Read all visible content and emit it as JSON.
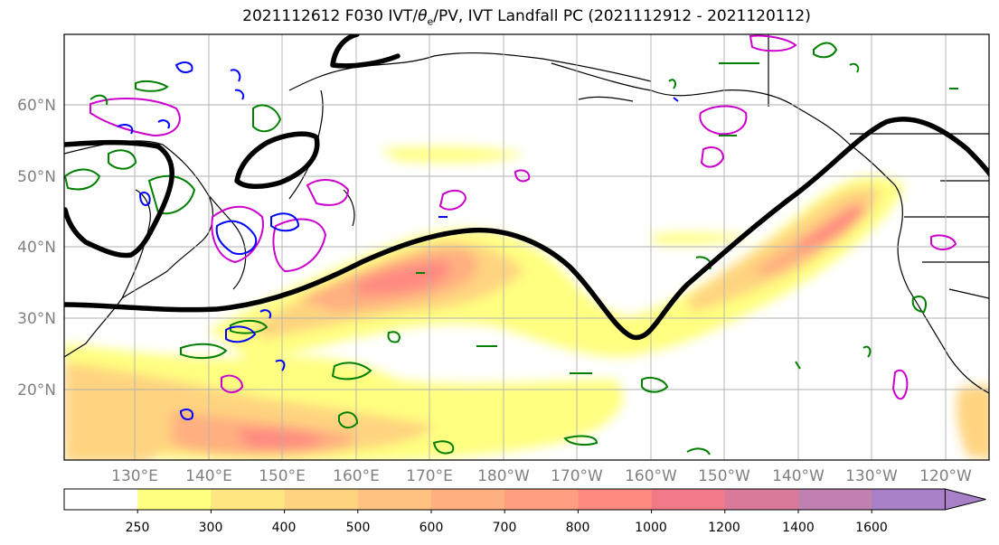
{
  "title": {
    "prefix": "2021112612 F030 IVT/",
    "theta": "θ",
    "theta_sub": "e",
    "suffix": "/PV, IVT Landfall PC (2021112912 - 2021120112)"
  },
  "lat_labels": [
    "60°N",
    "50°N",
    "40°N",
    "30°N",
    "20°N"
  ],
  "lon_labels": [
    "130°E",
    "140°E",
    "150°E",
    "160°E",
    "170°E",
    "180°W",
    "170°W",
    "160°W",
    "150°W",
    "140°W",
    "130°W",
    "120°W"
  ],
  "colorbar": {
    "ticks": [
      "250",
      "300",
      "400",
      "500",
      "600",
      "700",
      "800",
      "1000",
      "1200",
      "1400",
      "1600"
    ],
    "colors": [
      "#ffffff",
      "#ffff80",
      "#ffe680",
      "#ffd480",
      "#ffc280",
      "#ffb080",
      "#ff9e80",
      "#ff8a80",
      "#f07a8a",
      "#d97a9a",
      "#c080b0",
      "#a880c8"
    ]
  },
  "contour_colors": {
    "ivt_landfall_pc": "#000000",
    "pv_positive": "#008000",
    "pv_negative": "#0000ff",
    "theta_e": "#cc00cc"
  }
}
